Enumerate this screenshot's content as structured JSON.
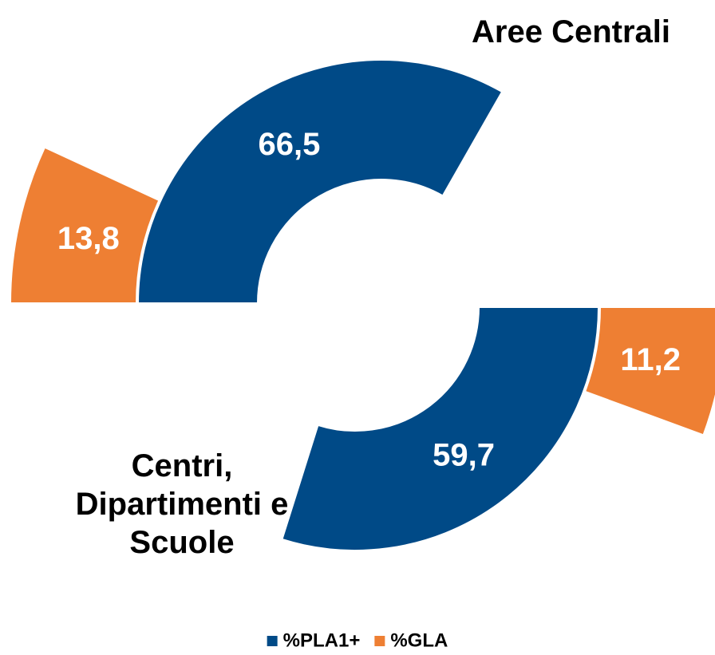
{
  "chart_data": {
    "type": "radial",
    "categories": [
      "Aree Centrali",
      "Centri, Dipartimenti e Scuole"
    ],
    "series": [
      {
        "name": "%PLA1+",
        "color": "#004a87",
        "values": [
          66.5,
          59.7
        ],
        "value_labels": [
          "66,5",
          "59,7"
        ]
      },
      {
        "name": "%GLA",
        "color": "#ee7f33",
        "values": [
          13.8,
          11.2
        ],
        "value_labels": [
          "13,8",
          "11,2"
        ]
      }
    ],
    "legend": "bottom"
  }
}
